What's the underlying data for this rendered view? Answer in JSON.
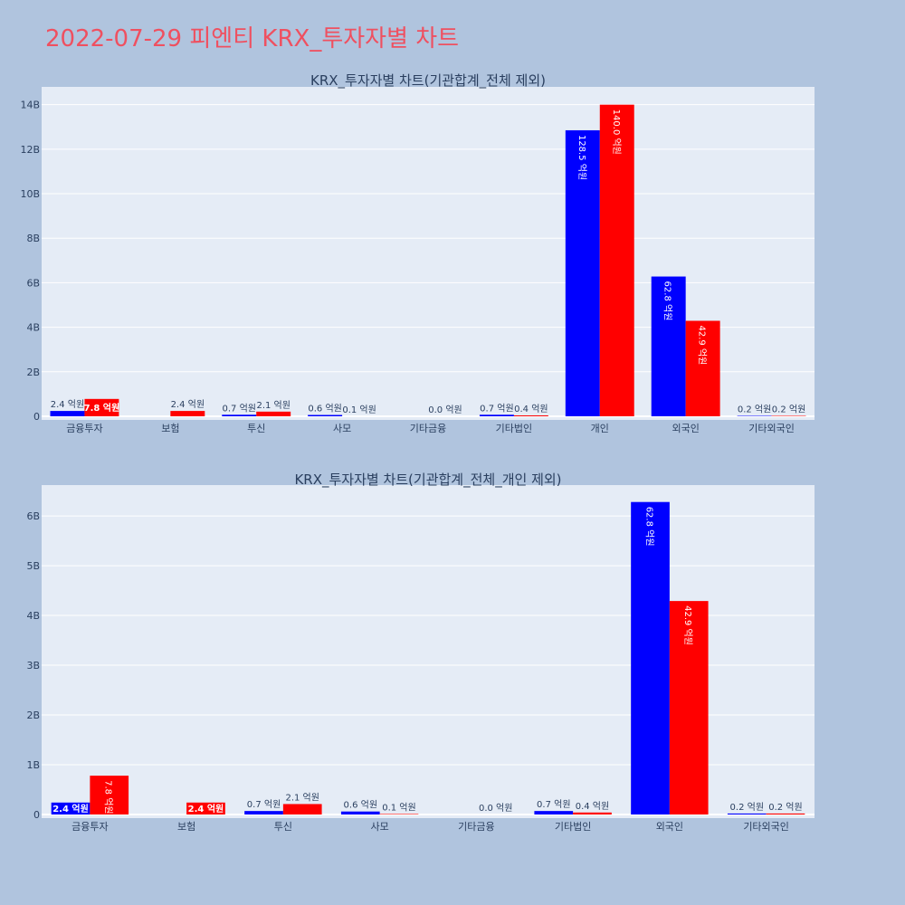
{
  "page_title": "2022-07-29 피엔티 KRX_투자자별 차트",
  "colors": {
    "buy": "#0000ff",
    "sell": "#ff0000",
    "plot_bg": "#e5ecf6",
    "page_bg": "#b0c4de",
    "title": "#ef5060"
  },
  "chart_data": [
    {
      "type": "bar",
      "title": "KRX_투자자별 차트(기관합계_전체 제외)",
      "categories": [
        "금융투자",
        "보험",
        "투신",
        "사모",
        "기타금융",
        "기타법인",
        "개인",
        "외국인",
        "기타외국인"
      ],
      "ylim": [
        0,
        14800000000
      ],
      "yticks": [
        0,
        2000000000,
        4000000000,
        6000000000,
        8000000000,
        10000000000,
        12000000000,
        14000000000
      ],
      "ytick_labels": [
        "0",
        "2B",
        "4B",
        "6B",
        "8B",
        "10B",
        "12B",
        "14B"
      ],
      "grid": true,
      "series": [
        {
          "color": "#0000ff",
          "values": [
            240000000,
            0,
            70000000,
            60000000,
            0,
            70000000,
            12850000000,
            6280000000,
            20000000
          ],
          "labels": [
            "2.4 억원",
            "",
            "0.7 억원",
            "0.6 억원",
            "",
            "0.7 억원",
            "128.5 억원",
            "62.8 억원",
            "0.2 억원"
          ]
        },
        {
          "color": "#ff0000",
          "values": [
            780000000,
            240000000,
            210000000,
            10000000,
            0,
            40000000,
            14000000000,
            4290000000,
            20000000
          ],
          "labels": [
            "7.8 억원",
            "2.4 억원",
            "2.1 억원",
            "0.1 억원",
            "0.0 억원",
            "0.4 억원",
            "140.0 억원",
            "42.9 억원",
            "0.2 억원"
          ]
        }
      ]
    },
    {
      "type": "bar",
      "title": "KRX_투자자별 차트(기관합계_전체_개인 제외)",
      "categories": [
        "금융투자",
        "보험",
        "투신",
        "사모",
        "기타금융",
        "기타법인",
        "외국인",
        "기타외국인"
      ],
      "ylim": [
        0,
        6620000000
      ],
      "yticks": [
        0,
        1000000000,
        2000000000,
        3000000000,
        4000000000,
        5000000000,
        6000000000
      ],
      "ytick_labels": [
        "0",
        "1B",
        "2B",
        "3B",
        "4B",
        "5B",
        "6B"
      ],
      "grid": true,
      "series": [
        {
          "color": "#0000ff",
          "values": [
            240000000,
            0,
            70000000,
            60000000,
            0,
            70000000,
            6280000000,
            20000000
          ],
          "labels": [
            "2.4 억원",
            "",
            "0.7 억원",
            "0.6 억원",
            "",
            "0.7 억원",
            "62.8 억원",
            "0.2 억원"
          ]
        },
        {
          "color": "#ff0000",
          "values": [
            780000000,
            240000000,
            210000000,
            10000000,
            0,
            40000000,
            4290000000,
            20000000
          ],
          "labels": [
            "7.8 억원",
            "2.4 억원",
            "2.1 억원",
            "0.1 억원",
            "0.0 억원",
            "0.4 억원",
            "42.9 억원",
            "0.2 억원"
          ]
        }
      ]
    }
  ]
}
